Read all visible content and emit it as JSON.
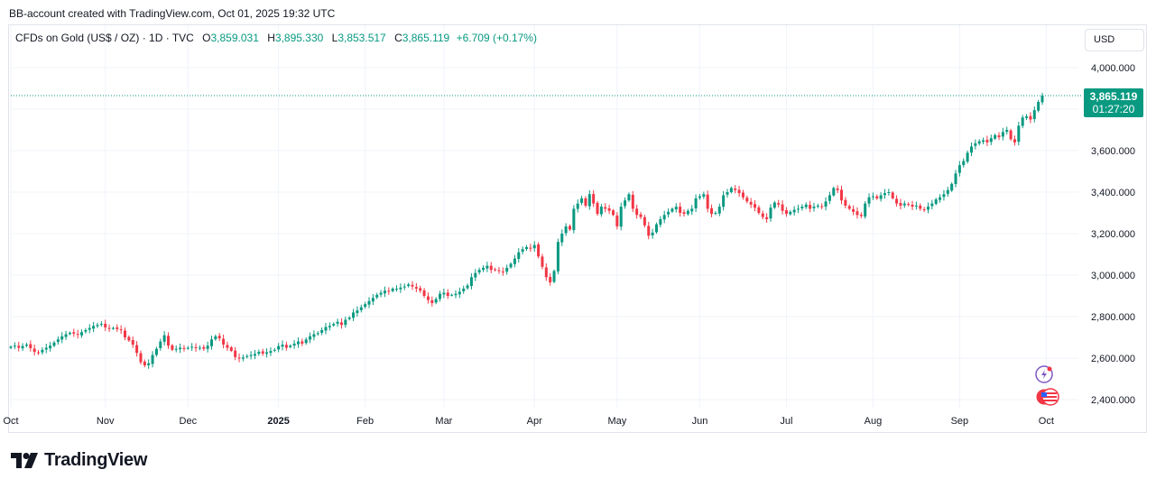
{
  "header": {
    "note": "BB-account created with TradingView.com, Oct 01, 2025 19:32 UTC"
  },
  "legend": {
    "symbol": "CFDs on Gold (US$ / OZ) · 1D · TVC",
    "o_label": "O",
    "o_value": "3,859.031",
    "h_label": "H",
    "h_value": "3,895.330",
    "l_label": "L",
    "l_value": "3,853.517",
    "c_label": "C",
    "c_value": "3,865.119",
    "change": "+6.709 (+0.17%)"
  },
  "currency_button": "USD",
  "price_tag": {
    "price": "3,865.119",
    "countdown": "01:27:20"
  },
  "brand": {
    "name": "TradingView"
  },
  "colors": {
    "up": "#089981",
    "down": "#f23645",
    "grid": "#f0f3fa",
    "last_price_line": "#089981"
  },
  "chart_data": {
    "type": "candlestick",
    "title": "CFDs on Gold (US$ / OZ) · 1D · TVC",
    "ylim": [
      2360,
      4100
    ],
    "y_ticks": [
      2400,
      2600,
      2800,
      3000,
      3200,
      3400,
      3600,
      3800,
      4000
    ],
    "y_tick_labels": [
      "2,400.000",
      "2,600.000",
      "2,800.000",
      "3,000.000",
      "3,200.000",
      "3,400.000",
      "3,600.000",
      "3,800.000",
      "4,000.000"
    ],
    "x_labels": [
      "Oct",
      "Nov",
      "Dec",
      "2025",
      "Feb",
      "Mar",
      "Apr",
      "May",
      "Jun",
      "Jul",
      "Aug",
      "Sep",
      "Oct"
    ],
    "x_label_index": [
      0,
      24,
      45,
      68,
      90,
      110,
      133,
      154,
      175,
      197,
      219,
      241,
      263
    ],
    "bold_x_labels": [
      "2025"
    ],
    "last_price": 3865.119,
    "closes": [
      2655,
      2660,
      2650,
      2658,
      2665,
      2648,
      2630,
      2625,
      2640,
      2650,
      2660,
      2675,
      2690,
      2705,
      2715,
      2722,
      2718,
      2712,
      2725,
      2735,
      2745,
      2755,
      2760,
      2765,
      2748,
      2742,
      2745,
      2740,
      2735,
      2700,
      2685,
      2665,
      2625,
      2580,
      2565,
      2575,
      2615,
      2645,
      2680,
      2710,
      2660,
      2640,
      2645,
      2650,
      2645,
      2650,
      2655,
      2648,
      2650,
      2645,
      2660,
      2690,
      2705,
      2695,
      2665,
      2650,
      2635,
      2605,
      2598,
      2603,
      2610,
      2615,
      2620,
      2630,
      2622,
      2628,
      2634,
      2640,
      2658,
      2665,
      2650,
      2660,
      2670,
      2680,
      2670,
      2690,
      2705,
      2715,
      2720,
      2735,
      2750,
      2755,
      2765,
      2775,
      2760,
      2785,
      2795,
      2820,
      2830,
      2845,
      2860,
      2875,
      2890,
      2905,
      2915,
      2925,
      2920,
      2935,
      2935,
      2940,
      2945,
      2955,
      2945,
      2935,
      2925,
      2900,
      2880,
      2865,
      2885,
      2910,
      2915,
      2900,
      2905,
      2910,
      2920,
      2935,
      2950,
      2990,
      3010,
      3025,
      3035,
      3045,
      3025,
      3025,
      3020,
      3015,
      3035,
      3055,
      3080,
      3110,
      3125,
      3135,
      3130,
      3145,
      3090,
      3040,
      2990,
      2965,
      3020,
      3160,
      3200,
      3235,
      3220,
      3320,
      3345,
      3370,
      3335,
      3390,
      3345,
      3295,
      3330,
      3320,
      3310,
      3290,
      3235,
      3330,
      3360,
      3390,
      3320,
      3290,
      3280,
      3240,
      3190,
      3205,
      3245,
      3270,
      3290,
      3305,
      3320,
      3330,
      3300,
      3295,
      3310,
      3320,
      3370,
      3380,
      3390,
      3320,
      3295,
      3300,
      3330,
      3385,
      3400,
      3420,
      3410,
      3395,
      3375,
      3355,
      3340,
      3325,
      3300,
      3280,
      3270,
      3325,
      3350,
      3340,
      3310,
      3295,
      3305,
      3315,
      3320,
      3330,
      3340,
      3320,
      3330,
      3335,
      3330,
      3355,
      3385,
      3420,
      3410,
      3360,
      3335,
      3320,
      3305,
      3290,
      3285,
      3345,
      3375,
      3380,
      3370,
      3385,
      3395,
      3400,
      3370,
      3345,
      3335,
      3345,
      3340,
      3330,
      3335,
      3320,
      3315,
      3330,
      3345,
      3365,
      3375,
      3390,
      3410,
      3440,
      3490,
      3530,
      3550,
      3590,
      3620,
      3635,
      3645,
      3650,
      3640,
      3660,
      3675,
      3665,
      3690,
      3700,
      3655,
      3640,
      3720,
      3760,
      3765,
      3750,
      3795,
      3835,
      3865.119
    ]
  }
}
